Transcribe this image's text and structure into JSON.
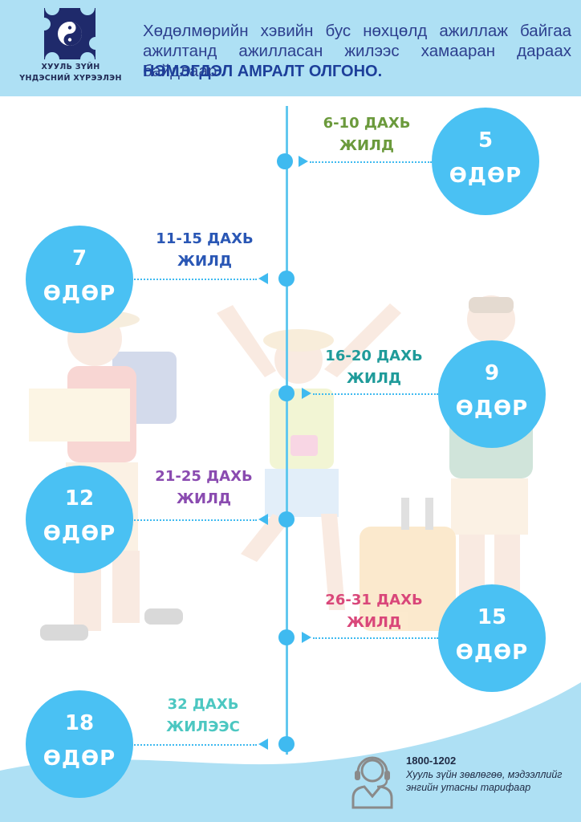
{
  "logo": {
    "line1": "ХУУЛЬ ЗҮЙН",
    "line2": "ҮНДЭСНИЙ ХҮРЭЭЛЭН"
  },
  "intro": {
    "text": "Хөдөлмөрийн хэвийн бус нөхцөлд ажиллаж байгаа ажилтанд ажилласан жилээс хамааран дараах байдлаар",
    "emphasis": "НЭМЭГДЭЛ АМРАЛТ ОЛГОНО."
  },
  "unit": "ӨДӨР",
  "items": [
    {
      "years": "6-10 ДАХЬ",
      "suffix": "ЖИЛД",
      "days": "5",
      "color": "#6b9a3c"
    },
    {
      "years": "11-15 ДАХЬ",
      "suffix": "ЖИЛД",
      "days": "7",
      "color": "#2a57b5"
    },
    {
      "years": "16-20 ДАХЬ",
      "suffix": "ЖИЛД",
      "days": "9",
      "color": "#1f9b9a"
    },
    {
      "years": "21-25 ДАХЬ",
      "suffix": "ЖИЛД",
      "days": "12",
      "color": "#8a4bb0"
    },
    {
      "years": "26-31 ДАХЬ",
      "suffix": "ЖИЛД",
      "days": "15",
      "color": "#d9477a"
    },
    {
      "years": "32 ДАХЬ",
      "suffix": "ЖИЛЭЭС",
      "days": "18",
      "color": "#4cc7c1"
    }
  ],
  "contact": {
    "phone": "1800-1202",
    "description": "Хууль зүйн зөвлөгөө, мэдээллийг энгийн утасны тарифаар"
  },
  "colors": {
    "header_bg": "#aee0f4",
    "circle": "#4ac1f3",
    "timeline": "#3fbaf0"
  }
}
